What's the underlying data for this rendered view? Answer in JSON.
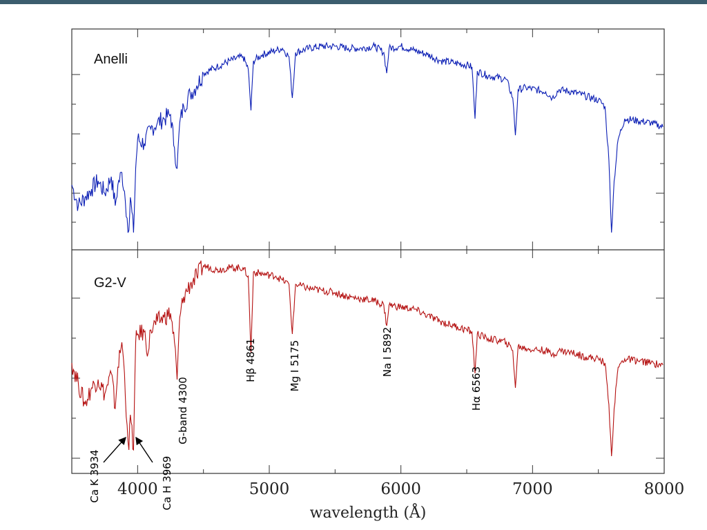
{
  "top_bar_color": "#3c5d6e",
  "chart_data": {
    "type": "line",
    "xlabel": "wavelength (Å)",
    "xlim": [
      3500,
      8000
    ],
    "x_ticks": [
      4000,
      5000,
      6000,
      7000,
      8000
    ],
    "grid": false,
    "panels": [
      {
        "label": "Anelli",
        "color": "#0a1db4",
        "ylim": [
          0,
          1
        ],
        "series": [
          {
            "x": [
              3500,
              3550,
              3600,
              3650,
              3700,
              3750,
              3800,
              3830,
              3850,
              3880,
              3900,
              3920,
              3934,
              3945,
              3969,
              3985,
              4000,
              4050,
              4100,
              4150,
              4200,
              4250,
              4280,
              4300,
              4320,
              4350,
              4400,
              4450,
              4500,
              4600,
              4700,
              4800,
              4840,
              4861,
              4880,
              4950,
              5050,
              5100,
              5150,
              5175,
              5200,
              5300,
              5400,
              5500,
              5600,
              5700,
              5800,
              5870,
              5892,
              5910,
              6000,
              6100,
              6200,
              6300,
              6400,
              6500,
              6540,
              6563,
              6580,
              6650,
              6800,
              6850,
              6870,
              6890,
              6950,
              7100,
              7150,
              7200,
              7300,
              7400,
              7500,
              7550,
              7580,
              7600,
              7620,
              7650,
              7700,
              7800,
              7900,
              7990
            ],
            "y": [
              0.28,
              0.18,
              0.22,
              0.26,
              0.3,
              0.24,
              0.32,
              0.18,
              0.28,
              0.34,
              0.25,
              0.12,
              0.06,
              0.22,
              0.05,
              0.36,
              0.5,
              0.48,
              0.55,
              0.58,
              0.6,
              0.62,
              0.46,
              0.36,
              0.58,
              0.66,
              0.72,
              0.76,
              0.82,
              0.85,
              0.88,
              0.9,
              0.84,
              0.64,
              0.88,
              0.91,
              0.93,
              0.94,
              0.9,
              0.7,
              0.92,
              0.94,
              0.95,
              0.95,
              0.94,
              0.94,
              0.95,
              0.92,
              0.82,
              0.94,
              0.95,
              0.93,
              0.91,
              0.88,
              0.87,
              0.86,
              0.85,
              0.6,
              0.83,
              0.81,
              0.79,
              0.7,
              0.52,
              0.74,
              0.75,
              0.73,
              0.7,
              0.74,
              0.73,
              0.71,
              0.69,
              0.66,
              0.4,
              0.05,
              0.3,
              0.5,
              0.6,
              0.59,
              0.58,
              0.56
            ]
          }
        ]
      },
      {
        "label": "G2-V",
        "color": "#b40f0f",
        "ylim": [
          0,
          1
        ],
        "series": [
          {
            "x": [
              3500,
              3550,
              3600,
              3650,
              3700,
              3750,
              3800,
              3830,
              3850,
              3880,
              3900,
              3920,
              3934,
              3945,
              3969,
              3985,
              4000,
              4050,
              4080,
              4100,
              4150,
              4200,
              4250,
              4280,
              4300,
              4320,
              4350,
              4400,
              4450,
              4500,
              4600,
              4700,
              4800,
              4840,
              4861,
              4880,
              4950,
              5050,
              5100,
              5150,
              5175,
              5200,
              5300,
              5400,
              5500,
              5600,
              5700,
              5800,
              5870,
              5892,
              5910,
              6000,
              6100,
              6200,
              6300,
              6400,
              6500,
              6540,
              6563,
              6580,
              6650,
              6800,
              6850,
              6870,
              6890,
              6950,
              7100,
              7150,
              7200,
              7300,
              7400,
              7500,
              7550,
              7580,
              7600,
              7620,
              7650,
              7700,
              7800,
              7900,
              7990
            ],
            "y": [
              0.5,
              0.4,
              0.3,
              0.38,
              0.42,
              0.35,
              0.45,
              0.28,
              0.48,
              0.6,
              0.45,
              0.2,
              0.08,
              0.25,
              0.08,
              0.6,
              0.64,
              0.65,
              0.55,
              0.66,
              0.7,
              0.72,
              0.74,
              0.6,
              0.42,
              0.72,
              0.82,
              0.88,
              0.92,
              0.97,
              0.95,
              0.96,
              0.96,
              0.92,
              0.55,
              0.94,
              0.93,
              0.92,
              0.9,
              0.88,
              0.64,
              0.88,
              0.86,
              0.85,
              0.84,
              0.82,
              0.81,
              0.8,
              0.78,
              0.68,
              0.78,
              0.77,
              0.76,
              0.73,
              0.7,
              0.68,
              0.66,
              0.65,
              0.45,
              0.64,
              0.62,
              0.6,
              0.56,
              0.38,
              0.58,
              0.57,
              0.56,
              0.54,
              0.56,
              0.55,
              0.53,
              0.52,
              0.5,
              0.3,
              0.05,
              0.28,
              0.48,
              0.52,
              0.51,
              0.5,
              0.49
            ]
          }
        ]
      }
    ],
    "annotations": [
      {
        "text": "Ca K 3934",
        "x": 3934
      },
      {
        "text": "Ca H 3969",
        "x": 3969
      },
      {
        "text": "G-band 4300",
        "x": 4300
      },
      {
        "text": "Hβ 4861",
        "x": 4861
      },
      {
        "text": "Mg I 5175",
        "x": 5175
      },
      {
        "text": "Na I 5892",
        "x": 5892
      },
      {
        "text": "Hα 6563",
        "x": 6563
      }
    ]
  }
}
